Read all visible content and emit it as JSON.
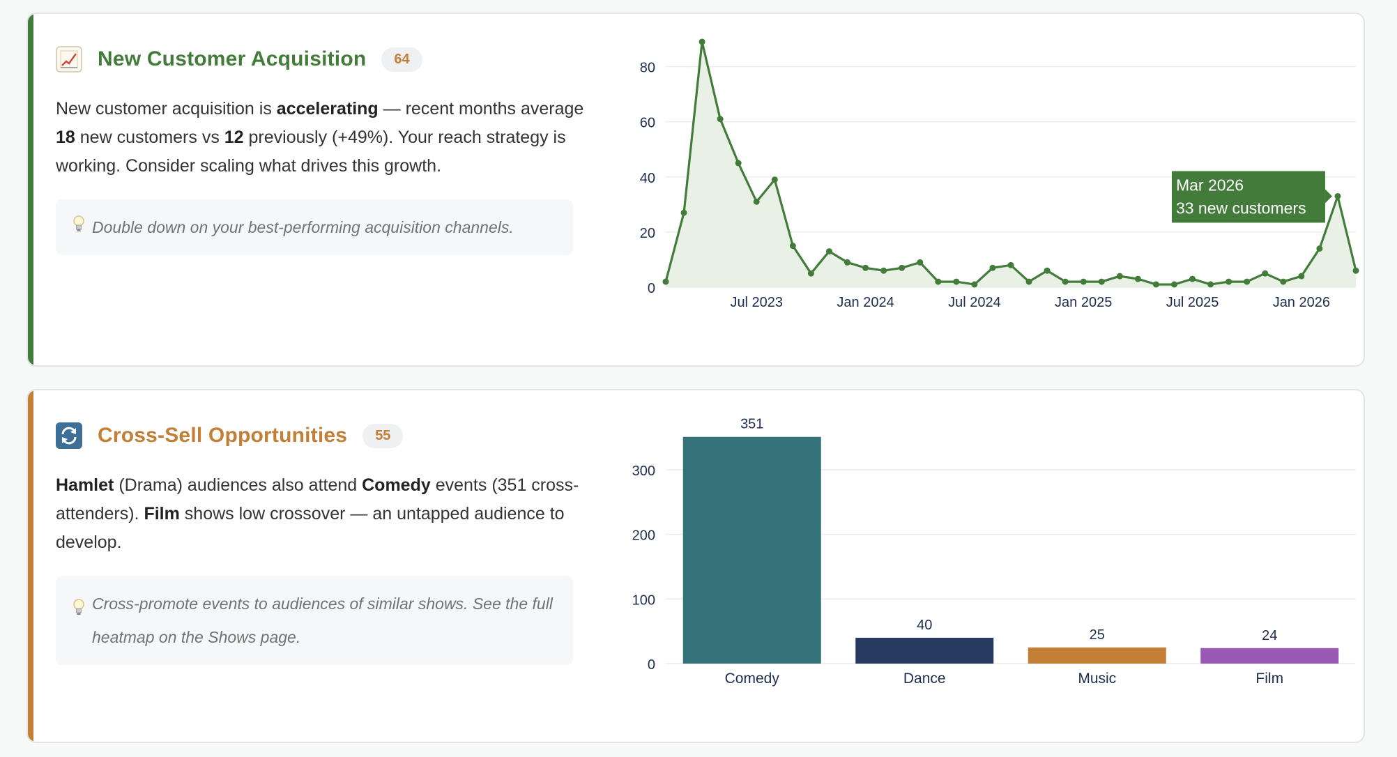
{
  "cards": [
    {
      "title": "New Customer Acquisition",
      "badge": "64",
      "icon": "chart-increasing-icon",
      "accent": "#437b3a",
      "description": {
        "t1": "New customer acquisition is ",
        "b1": "accelerating",
        "t2": " — recent months average ",
        "b2": "18",
        "t3": " new customers vs ",
        "b3": "12",
        "t4": " previously (+49%). Your reach strategy is working. Consider scaling what drives this growth."
      },
      "tip": "Double down on your best-performing acquisition channels.",
      "tooltip": {
        "line1": "Mar 2026",
        "line2": "33 new customers"
      }
    },
    {
      "title": "Cross-Sell Opportunities",
      "badge": "55",
      "icon": "cycle-arrows-icon",
      "accent": "#c27f35",
      "description": {
        "b1": "Hamlet",
        "t1": " (Drama) audiences also attend ",
        "b2": "Comedy",
        "t2": " events (351 cross-attenders). ",
        "b3": "Film",
        "t3": " shows low crossover — an untapped audience to develop."
      },
      "tip": "Cross-promote events to audiences of similar shows. See the full heatmap on the Shows page."
    }
  ],
  "chart_data": [
    {
      "type": "area",
      "x_ticks": [
        "Jul 2023",
        "Jan 2024",
        "Jul 2024",
        "Jan 2025",
        "Jul 2025",
        "Jan 2026"
      ],
      "y_ticks": [
        0,
        20,
        40,
        60,
        80
      ],
      "ylim": [
        0,
        90
      ],
      "grid": true,
      "line_color": "#437b3a",
      "fill_color": "#e9f1e7",
      "series": [
        {
          "values": [
            2,
            27,
            89,
            61,
            45,
            31,
            39,
            15,
            5,
            13,
            9,
            7,
            6,
            7,
            9,
            2,
            2,
            1,
            7,
            8,
            2,
            6,
            2,
            2,
            2,
            4,
            3,
            1,
            1,
            3,
            1,
            2,
            2,
            5,
            2,
            4,
            14,
            33,
            6
          ]
        }
      ],
      "highlight": {
        "label": "Mar 2026",
        "value": 33
      }
    },
    {
      "type": "bar",
      "categories": [
        "Comedy",
        "Dance",
        "Music",
        "Film"
      ],
      "values": [
        351,
        40,
        25,
        24
      ],
      "colors": [
        "#357279",
        "#263a60",
        "#c27f35",
        "#9b59b6"
      ],
      "y_ticks": [
        0,
        100,
        200,
        300
      ],
      "ylim": [
        0,
        350
      ],
      "grid": true
    }
  ]
}
